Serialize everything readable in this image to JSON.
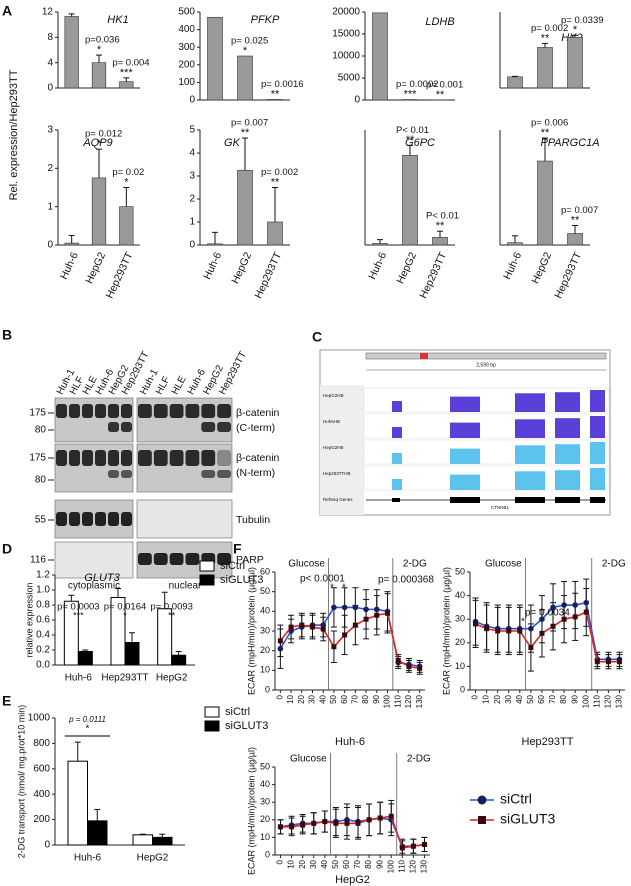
{
  "panels": {
    "labels": [
      "A",
      "B",
      "C",
      "D",
      "E",
      "F"
    ]
  },
  "panel_a": {
    "ylabel": "Rel. expression/Hep293TT"
  },
  "blot": {
    "lanes": [
      "Huh-1",
      "HLF",
      "HLE",
      "Huh-6",
      "HepG2",
      "Hep293TT",
      "Huh-1",
      "HLF",
      "HLE",
      "Huh-6",
      "HepG2",
      "Hep293TT"
    ],
    "markers": [
      175,
      80,
      175,
      80,
      55,
      116
    ],
    "rows": [
      [
        "β-catenin",
        "(C-term)"
      ],
      [
        "β-catenin",
        "(N-term)"
      ],
      [
        "Tubulin"
      ],
      [
        "PARP"
      ]
    ],
    "fractions": [
      "cytoplasmic",
      "nuclear"
    ]
  },
  "browser": {
    "scale": "2,599 bp",
    "tracks": [
      "HepG2HB",
      "Huh6HB",
      "HepG2HB",
      "Hep293TTHB"
    ],
    "refseq": "RefSeq Genes",
    "gene": "CTNNB1"
  },
  "chart_data": [
    {
      "type": "bar",
      "title": "HK1",
      "categories": [
        null,
        null,
        null
      ],
      "values": [
        11.3,
        4,
        1
      ],
      "errors": [
        0.4,
        1.2,
        0.6
      ],
      "p_labels": [
        null,
        "p=0.036",
        "p= 0.004"
      ],
      "stars": [
        null,
        "*",
        "***"
      ],
      "color": "#999999",
      "ylim": [
        0,
        12
      ],
      "yticks": [
        0,
        4,
        8,
        12
      ]
    },
    {
      "type": "bar",
      "title": "PFKP",
      "categories": [
        null,
        null,
        null
      ],
      "values": [
        470,
        250,
        3
      ],
      "errors": [
        0,
        0,
        0
      ],
      "p_labels": [
        null,
        "p= 0.025",
        "p= 0.0016"
      ],
      "stars": [
        null,
        "*",
        "**"
      ],
      "color": "#999999",
      "ylim": [
        0,
        500
      ],
      "yticks": [
        0,
        100,
        200,
        300,
        400,
        500
      ]
    },
    {
      "type": "bar",
      "title": "LDHB",
      "categories": [
        null,
        null,
        null
      ],
      "values": [
        19800,
        100,
        30
      ],
      "errors": [
        0,
        0,
        0
      ],
      "p_labels": [
        null,
        "p= 0.0002",
        "p= 0.001"
      ],
      "stars": [
        null,
        "***",
        "**"
      ],
      "color": "#999999",
      "ylim": [
        0,
        20000
      ],
      "yticks": [
        0,
        5000,
        10000,
        15000,
        20000
      ]
    },
    {
      "type": "bar",
      "title": "HK2",
      "categories": [
        null,
        null,
        null
      ],
      "values": [
        0.22,
        0.8,
        1
      ],
      "errors": [
        0.01,
        0.08,
        0.04
      ],
      "p_labels": [
        null,
        "p= 0.002",
        "p= 0.0339"
      ],
      "stars": [
        null,
        "**",
        "*"
      ],
      "color": "#999999",
      "ylim": [
        0,
        1.5
      ]
    },
    {
      "type": "bar",
      "title": "AQP9",
      "categories": [
        "Huh-6",
        "HepG2",
        "Hep293TT"
      ],
      "values": [
        0.05,
        1.75,
        1
      ],
      "errors": [
        0.2,
        0.75,
        0.5
      ],
      "p_labels": [
        null,
        "p= 0.012",
        "p= 0.02"
      ],
      "stars": [
        null,
        "*",
        "*"
      ],
      "color": "#999999",
      "ylim": [
        0,
        3
      ],
      "yticks": [
        0,
        1,
        2,
        3
      ]
    },
    {
      "type": "bar",
      "title": "GK",
      "categories": [
        "Huh-6",
        "HepG2",
        "Hep293TT"
      ],
      "values": [
        0.05,
        3.25,
        1
      ],
      "errors": [
        0.5,
        1.4,
        1.5
      ],
      "p_labels": [
        null,
        "p= 0.007",
        "p= 0.002"
      ],
      "stars": [
        null,
        "**",
        "**"
      ],
      "color": "#999999",
      "ylim": [
        0,
        5
      ],
      "yticks": [
        0,
        1,
        2,
        3,
        4,
        5
      ]
    },
    {
      "type": "bar",
      "title": "G6PC",
      "categories": [
        "Huh-6",
        "HepG2",
        "Hep293TT"
      ],
      "values": [
        0.2,
        11.7,
        1
      ],
      "errors": [
        0.5,
        1.3,
        0.8
      ],
      "p_labels": [
        null,
        "P< 0.01",
        "P< 0.01"
      ],
      "stars": [
        null,
        "**",
        "**"
      ],
      "color": "#999999",
      "ylim": [
        0,
        15
      ]
    },
    {
      "type": "bar",
      "title": "PPARGC1A",
      "categories": [
        "Huh-6",
        "HepG2",
        "Hep293TT"
      ],
      "values": [
        0.2,
        7.3,
        1
      ],
      "errors": [
        0.6,
        2,
        0.7
      ],
      "p_labels": [
        null,
        "p= 0.006",
        "p= 0.007"
      ],
      "stars": [
        null,
        "**",
        "**"
      ],
      "color": "#999999",
      "ylim": [
        0,
        10
      ]
    },
    {
      "type": "bar",
      "title": "GLUT3",
      "ylabel": "relative expression",
      "categories": [
        "Huh-6",
        "Hep293TT",
        "HepG2"
      ],
      "series": [
        {
          "name": "siCtrl",
          "color": "#ffffff",
          "values": [
            0.85,
            0.9,
            0.75
          ],
          "errors": [
            0.08,
            0.12,
            0.22
          ]
        },
        {
          "name": "siGLUT3",
          "color": "#000000",
          "values": [
            0.18,
            0.3,
            0.13
          ],
          "errors": [
            0.02,
            0.13,
            0.05
          ]
        }
      ],
      "p_labels": [
        "p= 0.0003",
        "p= 0.0164",
        "p= 0.0093"
      ],
      "stars": [
        "***",
        "*",
        "**"
      ],
      "ylim": [
        0,
        1.2
      ],
      "yticks": [
        {
          "value": 0,
          "label": "0.0"
        },
        0.2,
        0.4,
        0.6,
        0.8,
        {
          "value": 1,
          "label": "1.0"
        },
        1.2
      ]
    },
    {
      "type": "bar",
      "ylabel": "2-DG transport (nmol/ mg.prot*10 min)",
      "categories": [
        "Huh-6",
        "HepG2"
      ],
      "series": [
        {
          "name": "siCtrl",
          "color": "#ffffff",
          "values": [
            660,
            80
          ],
          "errors": [
            150,
            5
          ]
        },
        {
          "name": "siGLUT3",
          "color": "#000000",
          "values": [
            190,
            60
          ],
          "errors": [
            90,
            25
          ]
        }
      ],
      "annotation": "p = 0.0111",
      "annotation_stars": "*",
      "ylim": [
        0,
        1000
      ],
      "yticks": [
        0,
        200,
        400,
        600,
        800,
        1000
      ]
    },
    {
      "type": "line",
      "xlabel": "Huh-6",
      "ylabel": "ECAR (mpH/min)/protein (µg/µl)",
      "x": [
        0,
        10,
        20,
        30,
        40,
        50,
        60,
        70,
        80,
        90,
        100,
        110,
        120,
        130
      ],
      "series": [
        {
          "name": "siCtrl",
          "color": "#2f55d4",
          "marker_color": "#16205e",
          "marker": "circle",
          "values": [
            21,
            30,
            32,
            33,
            33,
            42,
            42,
            42,
            41,
            41,
            40,
            14,
            13,
            12
          ],
          "errors": [
            10,
            6,
            6,
            6,
            6,
            10,
            10,
            10,
            10,
            10,
            10,
            3,
            3,
            3
          ]
        },
        {
          "name": "siGLUT3",
          "color": "#d92626",
          "marker_color": "#3a0a0a",
          "marker": "square",
          "values": [
            25,
            32,
            33,
            32,
            31,
            22,
            28,
            33,
            36,
            38,
            39,
            15,
            12,
            11
          ],
          "errors": [
            8,
            6,
            6,
            6,
            6,
            8,
            10,
            10,
            10,
            10,
            10,
            3,
            3,
            3
          ]
        }
      ],
      "events": [
        {
          "x": 45,
          "label": "Glucose"
        },
        {
          "x": 105,
          "label": "2-DG"
        }
      ],
      "annotations": [
        "p< 0.0001",
        "*",
        "*",
        "p= 0.000368"
      ],
      "xlim": [
        -5,
        135
      ],
      "xticks": [
        0,
        10,
        20,
        30,
        40,
        50,
        60,
        70,
        80,
        90,
        100,
        110,
        120,
        130
      ],
      "ylim": [
        0,
        60
      ],
      "yticks": [
        0,
        10,
        20,
        30,
        40,
        50,
        60
      ]
    },
    {
      "type": "line",
      "xlabel": "Hep293TT",
      "ylabel": "ECAR (mpH/min)/protein (µg/µl)",
      "x": [
        0,
        10,
        20,
        30,
        40,
        50,
        60,
        70,
        80,
        90,
        100,
        110,
        120,
        130
      ],
      "series": [
        {
          "name": "siCtrl",
          "color": "#2f55d4",
          "marker_color": "#16205e",
          "marker": "circle",
          "values": [
            29,
            27,
            26,
            26,
            26,
            26,
            30,
            35,
            36,
            36,
            37,
            13,
            13,
            13
          ],
          "errors": [
            10,
            10,
            10,
            10,
            10,
            10,
            10,
            10,
            10,
            10,
            10,
            3,
            3,
            3
          ]
        },
        {
          "name": "siGLUT3",
          "color": "#d92626",
          "marker_color": "#3a0a0a",
          "marker": "square",
          "values": [
            28,
            26,
            25,
            25,
            25,
            18,
            24,
            27,
            30,
            31,
            33,
            12,
            12,
            12
          ],
          "errors": [
            10,
            10,
            10,
            10,
            10,
            10,
            10,
            10,
            10,
            10,
            10,
            3,
            3,
            3
          ]
        }
      ],
      "events": [
        {
          "x": 45,
          "label": "Glucose"
        },
        {
          "x": 105,
          "label": "2-DG"
        }
      ],
      "annotations": [
        "p= 0.0034",
        "*"
      ],
      "xlim": [
        -5,
        135
      ],
      "xticks": [
        0,
        10,
        20,
        30,
        40,
        50,
        60,
        70,
        80,
        90,
        100,
        110,
        120,
        130
      ],
      "ylim": [
        0,
        50
      ],
      "yticks": [
        0,
        10,
        20,
        30,
        40,
        50
      ]
    },
    {
      "type": "line",
      "xlabel": "HepG2",
      "ylabel": "ECAR (mpH/min)/protein (µg/µl)",
      "x": [
        0,
        10,
        20,
        30,
        40,
        50,
        60,
        70,
        80,
        90,
        100,
        110,
        120,
        130
      ],
      "series": [
        {
          "name": "siCtrl",
          "color": "#2f55d4",
          "marker_color": "#16205e",
          "marker": "circle",
          "values": [
            16,
            17,
            18,
            18,
            19,
            19,
            20,
            19,
            20,
            21,
            20,
            5,
            5,
            6
          ],
          "errors": [
            4,
            5,
            5,
            6,
            6,
            8,
            9,
            9,
            9,
            9,
            9,
            4,
            4,
            4
          ]
        },
        {
          "name": "siGLUT3",
          "color": "#d92626",
          "marker_color": "#3a0a0a",
          "marker": "square",
          "values": [
            16,
            16,
            17,
            18,
            19,
            18,
            18,
            18,
            20,
            21,
            22,
            4,
            5,
            6
          ],
          "errors": [
            4,
            5,
            5,
            6,
            6,
            8,
            9,
            9,
            9,
            9,
            9,
            4,
            4,
            4
          ]
        }
      ],
      "events": [
        {
          "x": 45,
          "label": "Glucose"
        },
        {
          "x": 105,
          "label": "2-DG"
        }
      ],
      "legend": "right",
      "xlim": [
        -5,
        135
      ],
      "xticks": [
        0,
        10,
        20,
        30,
        40,
        50,
        60,
        70,
        80,
        90,
        100,
        110,
        120,
        130
      ],
      "ylim": [
        0,
        50
      ],
      "yticks": [
        0,
        10,
        20,
        30,
        40,
        50
      ]
    }
  ]
}
